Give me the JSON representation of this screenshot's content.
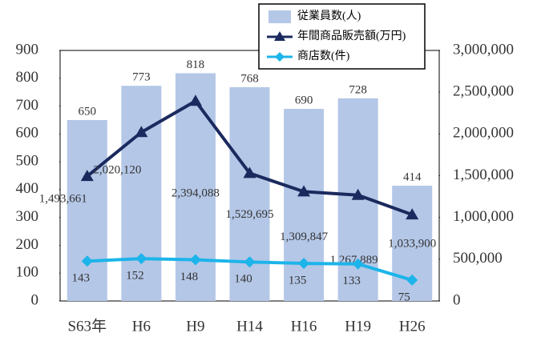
{
  "chart_data": {
    "type": "bar-line",
    "categories": [
      "S63年",
      "H6",
      "H9",
      "H14",
      "H16",
      "H19",
      "H26"
    ],
    "series": [
      {
        "name": "従業員数(人)",
        "type": "bar",
        "color": "#b4c7e7",
        "values": [
          650,
          773,
          818,
          768,
          690,
          728,
          414
        ]
      },
      {
        "name": "年間商品販売額(万円)",
        "type": "line",
        "axis": "y2",
        "color": "#1b2a5e",
        "marker": "triangle",
        "values": [
          1493661,
          2020120,
          2394088,
          1529695,
          1309847,
          1267889,
          1033900
        ],
        "value_labels": [
          "1,493,661",
          "2,020,120",
          "2,394,088",
          "1,529,695",
          "1,309,847",
          "1,267,889",
          "1,033,900"
        ]
      },
      {
        "name": "商店数(件)",
        "type": "line",
        "color": "#1cb4ea",
        "marker": "diamond",
        "values": [
          143,
          152,
          148,
          140,
          135,
          133,
          75
        ]
      }
    ],
    "ylim": [
      0,
      900
    ],
    "yticks": [
      0,
      100,
      200,
      300,
      400,
      500,
      600,
      700,
      800,
      900
    ],
    "y2lim": [
      0,
      3000000
    ],
    "y2ticks": [
      0,
      {
        "value": 500000,
        "label": "500,000"
      },
      {
        "value": 1000000,
        "label": "1,000,000"
      },
      {
        "value": 1500000,
        "label": "1,500,000"
      },
      {
        "value": 2000000,
        "label": "2,000,000"
      },
      {
        "value": 2500000,
        "label": "2,500,000"
      },
      {
        "value": 3000000,
        "label": "3,000,000"
      }
    ],
    "legend": "top-right"
  }
}
